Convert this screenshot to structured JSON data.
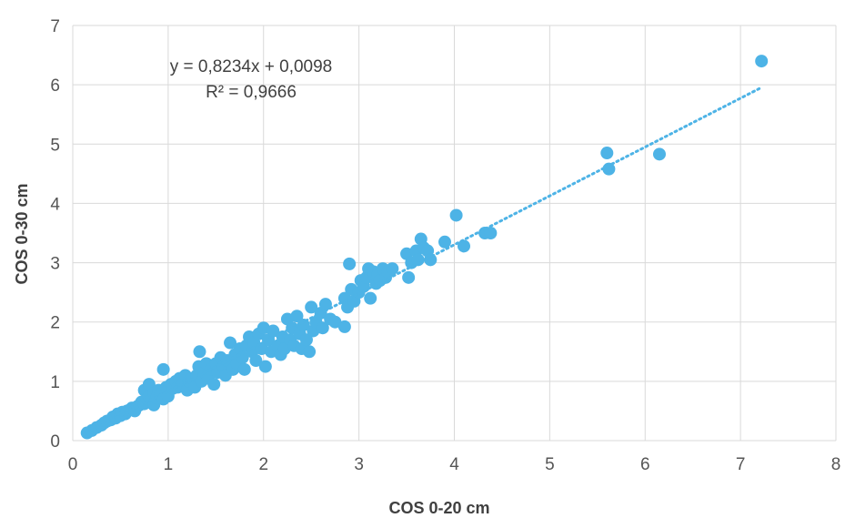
{
  "chart_data": {
    "type": "scatter",
    "xlabel": "COS 0-20 cm",
    "ylabel": "COS 0-30 cm",
    "xlim": [
      0,
      8
    ],
    "ylim": [
      0,
      7
    ],
    "xticks": [
      "0",
      "1",
      "2",
      "3",
      "4",
      "5",
      "6",
      "7",
      "8"
    ],
    "yticks": [
      "0",
      "1",
      "2",
      "3",
      "4",
      "5",
      "6",
      "7"
    ],
    "grid": true,
    "point_color": "#4db3e6",
    "trendline": {
      "type": "linear",
      "slope": 0.8234,
      "intercept": 0.0098,
      "x_range": [
        0.15,
        7.2
      ],
      "color": "#4db3e6",
      "style": "dotted",
      "equation_label": "y = 0,8234x + 0,0098",
      "r2_label": "R² = 0,9666"
    },
    "points": [
      [
        0.15,
        0.13
      ],
      [
        0.2,
        0.17
      ],
      [
        0.25,
        0.22
      ],
      [
        0.3,
        0.26
      ],
      [
        0.33,
        0.3
      ],
      [
        0.36,
        0.33
      ],
      [
        0.4,
        0.35
      ],
      [
        0.42,
        0.4
      ],
      [
        0.45,
        0.38
      ],
      [
        0.47,
        0.45
      ],
      [
        0.5,
        0.42
      ],
      [
        0.52,
        0.48
      ],
      [
        0.55,
        0.45
      ],
      [
        0.57,
        0.5
      ],
      [
        0.6,
        0.52
      ],
      [
        0.62,
        0.55
      ],
      [
        0.65,
        0.5
      ],
      [
        0.68,
        0.58
      ],
      [
        0.7,
        0.6
      ],
      [
        0.72,
        0.65
      ],
      [
        0.75,
        0.62
      ],
      [
        0.75,
        0.85
      ],
      [
        0.78,
        0.7
      ],
      [
        0.8,
        0.75
      ],
      [
        0.8,
        0.95
      ],
      [
        0.82,
        0.68
      ],
      [
        0.85,
        0.8
      ],
      [
        0.85,
        0.6
      ],
      [
        0.88,
        0.72
      ],
      [
        0.9,
        0.85
      ],
      [
        0.92,
        0.78
      ],
      [
        0.95,
        0.7
      ],
      [
        0.95,
        1.2
      ],
      [
        0.98,
        0.9
      ],
      [
        1.0,
        0.85
      ],
      [
        1.0,
        0.75
      ],
      [
        1.03,
        0.95
      ],
      [
        1.05,
        0.88
      ],
      [
        1.08,
        1.0
      ],
      [
        1.1,
        0.9
      ],
      [
        1.12,
        1.05
      ],
      [
        1.15,
        0.95
      ],
      [
        1.18,
        1.1
      ],
      [
        1.2,
        0.85
      ],
      [
        1.22,
        1.0
      ],
      [
        1.25,
        1.05
      ],
      [
        1.28,
        0.9
      ],
      [
        1.3,
        1.1
      ],
      [
        1.32,
        1.25
      ],
      [
        1.33,
        1.5
      ],
      [
        1.35,
        1.0
      ],
      [
        1.38,
        1.15
      ],
      [
        1.4,
        1.3
      ],
      [
        1.42,
        1.05
      ],
      [
        1.45,
        1.2
      ],
      [
        1.48,
        0.95
      ],
      [
        1.5,
        1.3
      ],
      [
        1.52,
        1.15
      ],
      [
        1.55,
        1.4
      ],
      [
        1.58,
        1.25
      ],
      [
        1.6,
        1.1
      ],
      [
        1.62,
        1.35
      ],
      [
        1.65,
        1.65
      ],
      [
        1.68,
        1.2
      ],
      [
        1.7,
        1.45
      ],
      [
        1.72,
        1.3
      ],
      [
        1.75,
        1.55
      ],
      [
        1.78,
        1.4
      ],
      [
        1.8,
        1.2
      ],
      [
        1.82,
        1.6
      ],
      [
        1.85,
        1.75
      ],
      [
        1.88,
        1.5
      ],
      [
        1.9,
        1.65
      ],
      [
        1.92,
        1.35
      ],
      [
        1.95,
        1.8
      ],
      [
        1.98,
        1.55
      ],
      [
        2.0,
        1.9
      ],
      [
        2.02,
        1.25
      ],
      [
        2.05,
        1.7
      ],
      [
        2.08,
        1.5
      ],
      [
        2.1,
        1.85
      ],
      [
        2.15,
        1.6
      ],
      [
        2.18,
        1.45
      ],
      [
        2.2,
        1.75
      ],
      [
        2.22,
        1.55
      ],
      [
        2.25,
        2.05
      ],
      [
        2.28,
        1.7
      ],
      [
        2.3,
        1.9
      ],
      [
        2.32,
        1.6
      ],
      [
        2.35,
        2.1
      ],
      [
        2.38,
        1.8
      ],
      [
        2.4,
        1.55
      ],
      [
        2.42,
        1.95
      ],
      [
        2.45,
        1.7
      ],
      [
        2.48,
        1.5
      ],
      [
        2.5,
        2.25
      ],
      [
        2.52,
        1.85
      ],
      [
        2.55,
        2.0
      ],
      [
        2.6,
        2.15
      ],
      [
        2.62,
        1.9
      ],
      [
        2.65,
        2.3
      ],
      [
        2.7,
        2.05
      ],
      [
        2.75,
        2.0
      ],
      [
        2.85,
        1.92
      ],
      [
        2.85,
        2.4
      ],
      [
        2.88,
        2.25
      ],
      [
        2.9,
        2.98
      ],
      [
        2.92,
        2.55
      ],
      [
        2.95,
        2.35
      ],
      [
        3.0,
        2.5
      ],
      [
        3.02,
        2.7
      ],
      [
        3.05,
        2.6
      ],
      [
        3.08,
        2.75
      ],
      [
        3.1,
        2.9
      ],
      [
        3.12,
        2.4
      ],
      [
        3.15,
        2.85
      ],
      [
        3.18,
        2.65
      ],
      [
        3.2,
        2.8
      ],
      [
        3.22,
        2.7
      ],
      [
        3.25,
        2.9
      ],
      [
        3.28,
        2.75
      ],
      [
        3.3,
        2.85
      ],
      [
        3.35,
        2.9
      ],
      [
        3.5,
        3.15
      ],
      [
        3.52,
        2.75
      ],
      [
        3.55,
        3.0
      ],
      [
        3.6,
        3.2
      ],
      [
        3.62,
        3.05
      ],
      [
        3.65,
        3.4
      ],
      [
        3.68,
        3.25
      ],
      [
        3.72,
        3.2
      ],
      [
        3.75,
        3.05
      ],
      [
        3.9,
        3.35
      ],
      [
        4.02,
        3.8
      ],
      [
        4.1,
        3.28
      ],
      [
        4.32,
        3.5
      ],
      [
        4.38,
        3.5
      ],
      [
        5.6,
        4.85
      ],
      [
        5.62,
        4.58
      ],
      [
        6.15,
        4.83
      ],
      [
        7.22,
        6.4
      ]
    ]
  }
}
